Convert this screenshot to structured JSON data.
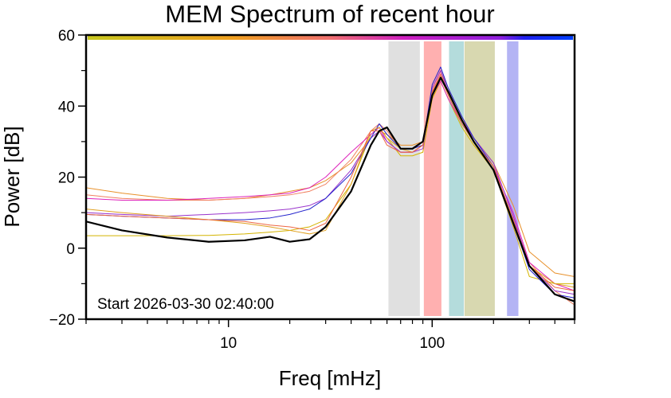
{
  "chart_data": {
    "type": "line",
    "title": "MEM Spectrum of recent hour",
    "x_label": "Freq [mHz]",
    "y_label": "Power [dB]",
    "annotation": "Start 2026-03-30 02:40:00",
    "log_x": true,
    "xlim": [
      2,
      500
    ],
    "ylim": [
      -20,
      60
    ],
    "xticks": [
      10,
      100
    ],
    "xminorticks": [
      2,
      3,
      4,
      5,
      6,
      7,
      8,
      9,
      20,
      30,
      40,
      50,
      60,
      70,
      80,
      90,
      200,
      300,
      400,
      500
    ],
    "yticks": [
      {
        "value": -20,
        "label": "−20"
      },
      0,
      20,
      40,
      60
    ],
    "yminorticks": [
      -10,
      10,
      30,
      50
    ],
    "bands": [
      {
        "x": [
          61,
          87
        ],
        "color": "#e0e0e0"
      },
      {
        "x": [
          91,
          111
        ],
        "color": "#ffb0b0"
      },
      {
        "x": [
          121,
          143
        ],
        "color": "#b4dcdc"
      },
      {
        "x": [
          144,
          203
        ],
        "color": "#d8d8b0"
      },
      {
        "x": [
          233,
          265
        ],
        "color": "#b4b4f4"
      }
    ],
    "x": [
      2,
      3,
      5,
      8,
      12,
      16,
      20,
      25,
      30,
      40,
      50,
      55,
      60,
      70,
      80,
      90,
      100,
      110,
      120,
      140,
      160,
      200,
      250,
      300,
      400,
      500
    ],
    "series": [
      {
        "color": "#d4b400",
        "values": [
          3.5,
          3.5,
          3.5,
          3.6,
          4,
          4.5,
          5,
          6,
          8,
          18,
          32,
          34,
          31,
          26,
          26,
          27,
          42,
          47,
          42,
          34,
          29,
          22,
          6,
          -8,
          -10,
          -10
        ]
      },
      {
        "color": "#e8902a",
        "values": [
          17,
          15.5,
          14,
          13.5,
          14,
          15,
          16,
          17,
          19,
          24,
          31,
          33,
          32,
          29,
          29,
          30,
          44,
          49,
          44,
          36,
          31,
          24,
          12,
          -1,
          -7,
          -8
        ]
      },
      {
        "color": "#f08060",
        "values": [
          15,
          14,
          13.5,
          13.5,
          14,
          14.5,
          15,
          16,
          18,
          25,
          33,
          35,
          33,
          28,
          28,
          29,
          45,
          50,
          45,
          37,
          30,
          23,
          8,
          -4,
          -12,
          -16
        ]
      },
      {
        "color": "#dd22bb",
        "values": [
          14,
          13.5,
          13.5,
          14,
          14.5,
          15,
          15.5,
          17,
          20,
          27,
          32,
          34,
          30,
          27,
          27,
          29,
          43,
          47,
          42,
          35,
          30,
          23,
          10,
          -4,
          -10,
          -12
        ]
      },
      {
        "color": "#9933cc",
        "values": [
          10,
          9.5,
          9,
          9.5,
          10,
          10.5,
          11,
          12,
          14,
          22,
          31,
          33,
          30,
          27,
          27,
          28,
          45,
          50,
          44,
          36,
          31,
          24,
          9,
          -5,
          -12,
          -13
        ]
      },
      {
        "color": "#2222cc",
        "values": [
          9.5,
          9,
          8.5,
          8,
          8,
          8.5,
          9.5,
          11,
          14,
          21,
          31,
          35,
          32,
          28,
          28,
          29,
          46,
          51,
          45,
          37,
          31,
          23,
          7,
          -6,
          -13,
          -14
        ]
      },
      {
        "color": "#e0a020",
        "values": [
          11,
          10,
          9,
          8,
          7,
          6,
          5,
          4,
          5,
          18,
          33,
          34,
          31,
          28,
          27,
          29,
          44,
          48,
          43,
          35,
          30,
          22,
          8,
          -5,
          -10,
          -11
        ]
      },
      {
        "color": "#ee6644",
        "values": [
          9.5,
          9,
          8.5,
          8,
          7.5,
          6.5,
          6,
          5,
          7,
          20,
          33,
          33,
          29,
          27,
          27,
          29,
          44,
          49,
          43,
          35,
          30,
          23,
          8,
          -5,
          -11,
          -12
        ]
      },
      {
        "color": "#000000",
        "values": [
          7.5,
          5,
          3,
          1.8,
          2.2,
          3.2,
          1.8,
          2.5,
          6,
          16,
          29,
          33,
          34,
          28,
          28,
          30,
          43,
          48,
          44,
          36,
          30,
          22,
          7,
          -5,
          -13,
          -15
        ]
      }
    ]
  }
}
